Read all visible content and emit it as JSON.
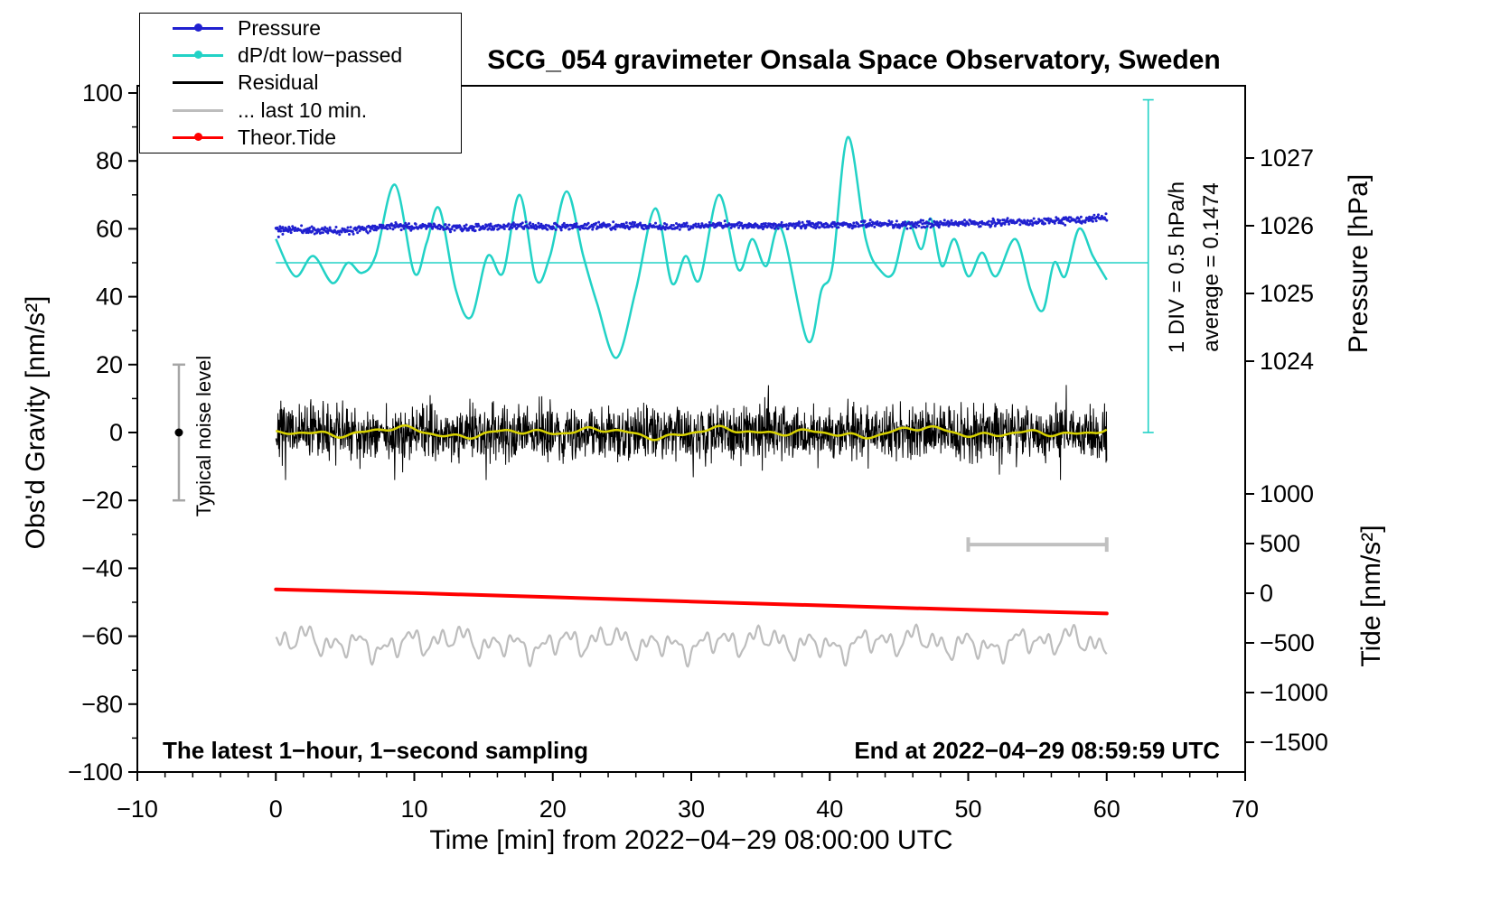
{
  "annotations": {
    "sampling": "The latest 1−hour, 1−second sampling",
    "end_time": "End at 2022−04−29 08:59:59 UTC",
    "div_scale": "1 DIV = 0.5 hPa/h",
    "average": "average = 0.1474",
    "noise_level": "Typical noise level"
  },
  "legend": [
    {
      "label": "Pressure",
      "color": "#2020d0",
      "marker": "dot"
    },
    {
      "label": "dP/dt low−passed",
      "color": "#22d2c6",
      "marker": "dot"
    },
    {
      "label": "Residual",
      "color": "#000000",
      "marker": "none"
    },
    {
      "label": "... last 10 min.",
      "color": "#bdbdbd",
      "marker": "none"
    },
    {
      "label": "Theor.Tide",
      "color": "#ff0000",
      "marker": "dot"
    }
  ],
  "chart_data": {
    "type": "line",
    "title": "SCG_054 gravimeter Onsala Space Observatory, Sweden",
    "x_axis": {
      "label": "Time [min] from 2022−04−29 08:00:00 UTC",
      "min": -10,
      "max": 70,
      "tick_values": [
        -10,
        0,
        10,
        20,
        30,
        40,
        50,
        60,
        70
      ],
      "tick_labels": [
        "−10",
        "0",
        "10",
        "20",
        "30",
        "40",
        "50",
        "60",
        "70"
      ]
    },
    "y_axis_gravity": {
      "label": "Obs'd Gravity [nm/s²]",
      "min": -100,
      "max": 100,
      "tick_values": [
        100,
        80,
        60,
        40,
        20,
        0,
        -20,
        -40,
        -60,
        -80,
        -100
      ],
      "tick_labels": [
        "100",
        "80",
        "60",
        "40",
        "20",
        "0",
        "−20",
        "−40",
        "−60",
        "−80",
        "−100"
      ]
    },
    "y_axis_pressure": {
      "label": "Pressure [hPa]",
      "tick_values": [
        1027,
        1026,
        1025,
        1024
      ],
      "tick_labels": [
        "1027",
        "1026",
        "1025",
        "1024"
      ]
    },
    "y_axis_tide": {
      "label": "Tide [nm/s²]",
      "tick_values": [
        1000,
        500,
        0,
        -500,
        -1000,
        -1500
      ],
      "tick_labels": [
        "1000",
        "500",
        "0",
        "−500",
        "−1000",
        "−1500"
      ]
    },
    "dpdt_stats": {
      "hpa_per_div": 0.5,
      "average_hpa_per_h": 0.1474
    },
    "series": [
      {
        "name": "... last 10 min.",
        "type": "harmonic-line",
        "color": "#bdbdbd",
        "width": 2.2,
        "mean": -62,
        "x_from": 0,
        "x_to": 60,
        "components": [
          [
            1.9,
            2.2,
            0.5
          ],
          [
            0.95,
            1.5,
            2.9
          ],
          [
            3.7,
            1.4,
            4.4
          ],
          [
            0.6,
            0.9,
            1.2
          ],
          [
            11,
            1.1,
            0.8
          ]
        ]
      },
      {
        "name": "Theor.Tide",
        "type": "line",
        "color": "#ff0000",
        "width": 4,
        "points": [
          [
            0,
            -46.2
          ],
          [
            10,
            -47.3
          ],
          [
            20,
            -48.5
          ],
          [
            30,
            -49.8
          ],
          [
            40,
            -51.0
          ],
          [
            50,
            -52.2
          ],
          [
            60,
            -53.3
          ]
        ]
      },
      {
        "name": "Residual",
        "type": "noise-line",
        "color": "#000000",
        "width": 1,
        "mean": 0,
        "sd": 4.0,
        "n_points": 2300,
        "seed": 7,
        "x_from": 0,
        "x_to": 60
      },
      {
        "name": "Residual smoothed",
        "type": "harmonic-line",
        "color": "#d8d200",
        "width": 2.5,
        "mean": 0,
        "x_from": 0,
        "x_to": 60,
        "components": [
          [
            7.5,
            0.8,
            0.3
          ],
          [
            3.2,
            0.5,
            1.7
          ],
          [
            13,
            0.7,
            4.0
          ],
          [
            1.9,
            0.3,
            2.2
          ]
        ]
      },
      {
        "name": "dP/dt low−passed",
        "type": "smooth-line",
        "color": "#22d2c6",
        "width": 2.5,
        "points": [
          [
            0,
            57
          ],
          [
            1.4,
            46
          ],
          [
            2.7,
            52
          ],
          [
            4.1,
            44
          ],
          [
            5.2,
            50
          ],
          [
            6.2,
            47
          ],
          [
            7.2,
            52
          ],
          [
            8.6,
            73
          ],
          [
            10,
            47
          ],
          [
            10.9,
            56
          ],
          [
            11.8,
            66
          ],
          [
            13,
            42
          ],
          [
            14.1,
            34
          ],
          [
            15.3,
            52
          ],
          [
            16.4,
            47
          ],
          [
            17.6,
            70
          ],
          [
            18.8,
            45
          ],
          [
            19.8,
            52
          ],
          [
            21,
            71
          ],
          [
            22.2,
            52
          ],
          [
            23.2,
            38
          ],
          [
            24.6,
            22
          ],
          [
            26,
            42
          ],
          [
            27.4,
            66
          ],
          [
            28.6,
            44
          ],
          [
            29.6,
            52
          ],
          [
            30.6,
            45
          ],
          [
            32,
            70
          ],
          [
            33.4,
            48
          ],
          [
            34.4,
            57
          ],
          [
            35.4,
            49
          ],
          [
            36.5,
            60
          ],
          [
            38.4,
            27
          ],
          [
            39.4,
            42
          ],
          [
            40.2,
            49
          ],
          [
            41.3,
            87
          ],
          [
            42.6,
            57
          ],
          [
            43.6,
            48
          ],
          [
            44.6,
            47
          ],
          [
            45.6,
            62
          ],
          [
            46.6,
            54
          ],
          [
            47.3,
            63
          ],
          [
            48.1,
            49
          ],
          [
            49,
            57
          ],
          [
            50,
            46
          ],
          [
            51,
            53
          ],
          [
            52,
            46
          ],
          [
            53.4,
            57
          ],
          [
            54.5,
            42
          ],
          [
            55.4,
            36
          ],
          [
            56.2,
            50
          ],
          [
            57,
            46
          ],
          [
            58,
            60
          ],
          [
            59,
            52
          ],
          [
            60,
            45
          ]
        ]
      },
      {
        "name": "Pressure",
        "type": "scatter",
        "color": "#2020d0",
        "dot_radius": 1.5,
        "n_points": 1200,
        "noise_sd": 0.5,
        "seed": 11,
        "base": [
          [
            0,
            60.0
          ],
          [
            3,
            59.5
          ],
          [
            5,
            59.6
          ],
          [
            8,
            60.8
          ],
          [
            11,
            60.6
          ],
          [
            14,
            60.2
          ],
          [
            17,
            60.8
          ],
          [
            20,
            60.6
          ],
          [
            23,
            60.8
          ],
          [
            26,
            60.9
          ],
          [
            29,
            60.5
          ],
          [
            32,
            61.1
          ],
          [
            35,
            61.0
          ],
          [
            38,
            61.0
          ],
          [
            41,
            61.2
          ],
          [
            44,
            61.3
          ],
          [
            47,
            61.3
          ],
          [
            50,
            61.6
          ],
          [
            53,
            61.9
          ],
          [
            56,
            62.3
          ],
          [
            58,
            62.6
          ],
          [
            60,
            63.1
          ]
        ],
        "outliers": [
          [
            0.2,
            57.6
          ],
          [
            0.5,
            58.4
          ],
          [
            0.9,
            59.2
          ]
        ]
      }
    ],
    "reference_marks": {
      "dpdt_mean_line": {
        "y": 50,
        "x_from": 0,
        "x_to": 63,
        "color": "#22d2c6"
      },
      "dpdt_scale_bar": {
        "x": 63,
        "y_from": 0,
        "y_to": 98,
        "color": "#22d2c6"
      },
      "noise_level_bar": {
        "x": -7,
        "y_center": 0,
        "half_range": 20,
        "color": "#a6a6a6"
      },
      "ten_min_bar": {
        "x_from": 50,
        "x_to": 60,
        "y": -33,
        "color": "#c0c0c0"
      }
    }
  }
}
